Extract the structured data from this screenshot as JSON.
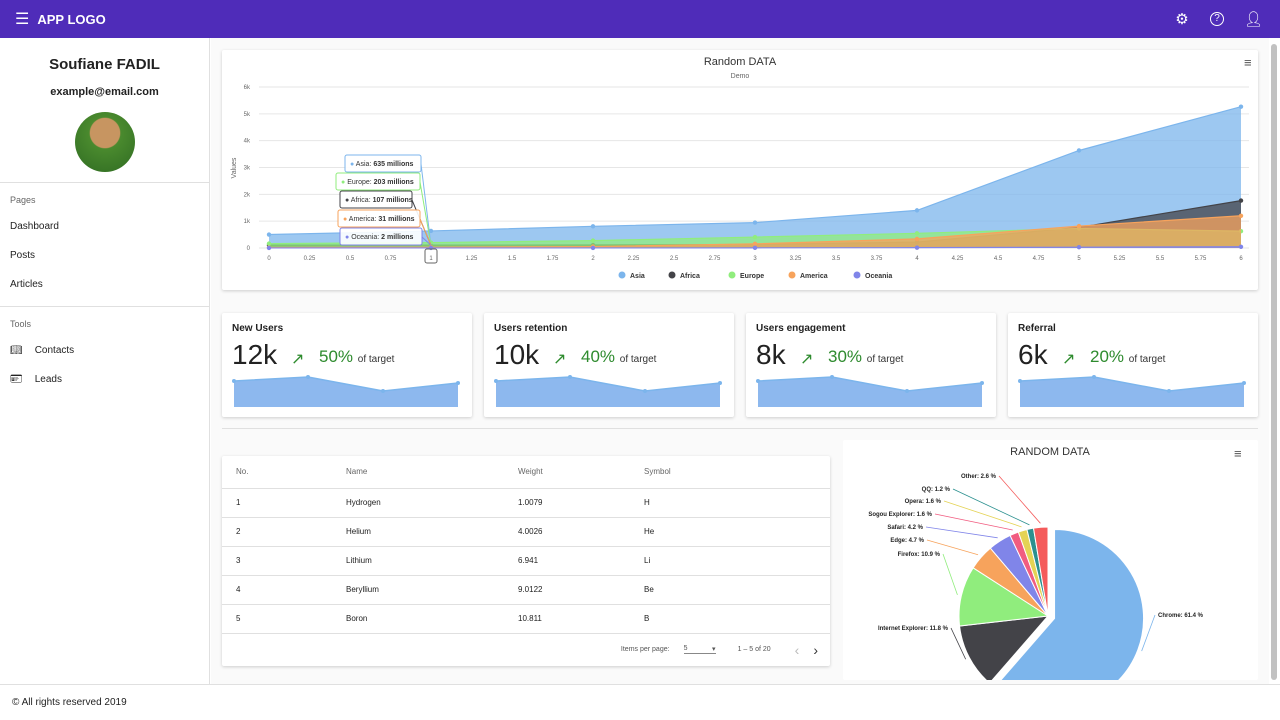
{
  "header": {
    "menu_icon": "hamburger-icon",
    "logo": "APP LOGO",
    "icons": [
      "gear-icon",
      "help-circle-icon",
      "person-icon"
    ]
  },
  "sidebar": {
    "name": "Soufiane FADIL",
    "email": "example@email.com",
    "pages_heading": "Pages",
    "pages": [
      {
        "label": "Dashboard"
      },
      {
        "label": "Posts"
      },
      {
        "label": "Articles"
      }
    ],
    "tools_heading": "Tools",
    "tools": [
      {
        "label": "Contacts",
        "icon": "book-icon"
      },
      {
        "label": "Leads",
        "icon": "contact-card-icon"
      }
    ]
  },
  "chart_data": [
    {
      "type": "area",
      "title": "Random DATA",
      "subtitle": "Demo",
      "ylabel": "Values",
      "ylim": [
        0,
        6000
      ],
      "xlim": [
        0,
        6
      ],
      "yticks": [
        "0",
        "1k",
        "2k",
        "3k",
        "4k",
        "5k",
        "6k"
      ],
      "xticks": [
        "0",
        "0.25",
        "0.5",
        "0.75",
        "1",
        "1.25",
        "1.5",
        "1.75",
        "2",
        "2.25",
        "2.5",
        "2.75",
        "3",
        "3.25",
        "3.5",
        "3.75",
        "4",
        "4.25",
        "4.5",
        "4.75",
        "5",
        "5.25",
        "5.5",
        "5.75",
        "6"
      ],
      "x": [
        0,
        1,
        2,
        3,
        4,
        5,
        6
      ],
      "series": [
        {
          "name": "Asia",
          "color": "#7cb5ec",
          "values": [
            502,
            635,
            809,
            947,
            1402,
            3634,
            5268
          ]
        },
        {
          "name": "Africa",
          "color": "#434348",
          "values": [
            106,
            107,
            111,
            133,
            221,
            767,
            1766
          ]
        },
        {
          "name": "Europe",
          "color": "#90ed7d",
          "values": [
            163,
            203,
            276,
            408,
            547,
            729,
            628
          ]
        },
        {
          "name": "America",
          "color": "#f7a35c",
          "values": [
            18,
            31,
            54,
            156,
            339,
            818,
            1201
          ]
        },
        {
          "name": "Oceania",
          "color": "#8085e9",
          "values": [
            2,
            2,
            2,
            6,
            13,
            30,
            46
          ]
        }
      ],
      "tooltip": [
        "Asia: ",
        "635 millions",
        "Europe: ",
        "203 millions",
        "Africa: ",
        "107 millions",
        "America: ",
        "31 millions",
        "Oceania: ",
        "2 millions"
      ],
      "legend": "bottom"
    },
    {
      "type": "pie",
      "title": "RANDOM DATA",
      "slices": [
        {
          "name": "Chrome",
          "value": 61.4,
          "label": "Chrome: 61.4 %",
          "color": "#7cb5ec"
        },
        {
          "name": "Internet Explorer",
          "value": 11.8,
          "label": "Internet Explorer: 11.8 %",
          "color": "#434348"
        },
        {
          "name": "Firefox",
          "value": 10.9,
          "label": "Firefox: 10.9 %",
          "color": "#90ed7d"
        },
        {
          "name": "Edge",
          "value": 4.7,
          "label": "Edge: 4.7 %",
          "color": "#f7a35c"
        },
        {
          "name": "Safari",
          "value": 4.2,
          "label": "Safari: 4.2 %",
          "color": "#8085e9"
        },
        {
          "name": "Sogou Explorer",
          "value": 1.6,
          "label": "Sogou Explorer: 1.6 %",
          "color": "#f15c80"
        },
        {
          "name": "Opera",
          "value": 1.6,
          "label": "Opera: 1.6 %",
          "color": "#e4d354"
        },
        {
          "name": "QQ",
          "value": 1.2,
          "label": "QQ: 1.2 %",
          "color": "#2b908f"
        },
        {
          "name": "Other",
          "value": 2.6,
          "label": "Other: 2.6 %",
          "color": "#f45b5b"
        }
      ]
    }
  ],
  "kpis": [
    {
      "title": "New Users",
      "value": "12k",
      "pct": "50%",
      "of": "of target",
      "spark": [
        60,
        62,
        55,
        59
      ]
    },
    {
      "title": "Users retention",
      "value": "10k",
      "pct": "40%",
      "of": "of target",
      "spark": [
        60,
        62,
        55,
        59
      ]
    },
    {
      "title": "Users engagement",
      "value": "8k",
      "pct": "30%",
      "of": "of target",
      "spark": [
        60,
        62,
        55,
        59
      ]
    },
    {
      "title": "Referral",
      "value": "6k",
      "pct": "20%",
      "of": "of target",
      "spark": [
        60,
        62,
        55,
        59
      ]
    }
  ],
  "table": {
    "headers": [
      "No.",
      "Name",
      "Weight",
      "Symbol"
    ],
    "rows": [
      [
        "1",
        "Hydrogen",
        "1.0079",
        "H"
      ],
      [
        "2",
        "Helium",
        "4.0026",
        "He"
      ],
      [
        "3",
        "Lithium",
        "6.941",
        "Li"
      ],
      [
        "4",
        "Beryllium",
        "9.0122",
        "Be"
      ],
      [
        "5",
        "Boron",
        "10.811",
        "B"
      ]
    ],
    "items_per_page_label": "Items per page:",
    "items_per_page": "5",
    "range": "1 – 5 of 20"
  },
  "footer": "© All rights reserved 2019"
}
